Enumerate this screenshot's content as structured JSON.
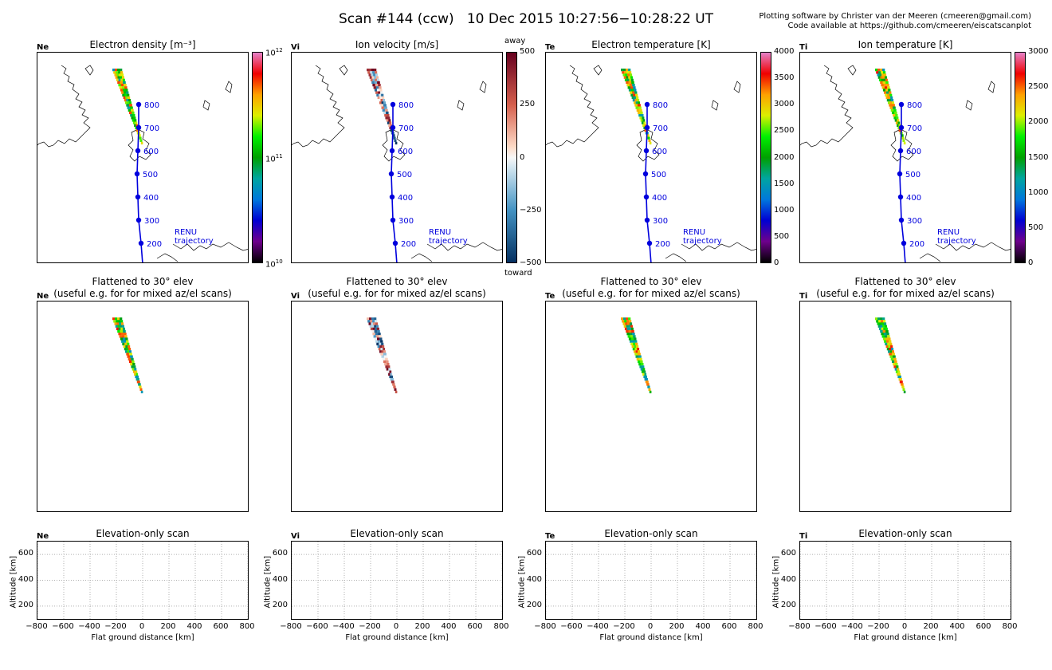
{
  "header": {
    "title": "Scan #144 (ccw)   10 Dec 2015 10:27:56−10:28:22 UT",
    "credit_line1": "Plotting software by Christer van der Meeren (cmeeren@gmail.com)",
    "credit_line2": "Code available at https://github.com/cmeeren/eiscatscanplot"
  },
  "trajectory": {
    "label_line1": "RENU",
    "label_line2": "trajectory",
    "altitudes": [
      "800",
      "700",
      "600",
      "500",
      "400",
      "300",
      "200"
    ],
    "color": "#0000dd"
  },
  "panels": [
    {
      "tag": "Ne",
      "map_title": "Electron density [m⁻³]",
      "colormap": "nipy_spectral",
      "colorbar_ticks": [
        {
          "base": "10",
          "exp": "12"
        },
        {
          "base": "10",
          "exp": "11"
        },
        {
          "base": "10",
          "exp": "10"
        }
      ],
      "colorbar_extra_top": "",
      "colorbar_extra_bottom": ""
    },
    {
      "tag": "Vi",
      "map_title": "Ion velocity [m/s]",
      "colormap": "RdBu_r",
      "colorbar_ticks": [
        {
          "base": "500",
          "exp": ""
        },
        {
          "base": "250",
          "exp": ""
        },
        {
          "base": "0",
          "exp": ""
        },
        {
          "base": "−250",
          "exp": ""
        },
        {
          "base": "−500",
          "exp": ""
        }
      ],
      "colorbar_extra_top": "away",
      "colorbar_extra_bottom": "toward"
    },
    {
      "tag": "Te",
      "map_title": "Electron temperature [K]",
      "colormap": "nipy_spectral",
      "colorbar_ticks": [
        {
          "base": "4000",
          "exp": ""
        },
        {
          "base": "3500",
          "exp": ""
        },
        {
          "base": "3000",
          "exp": ""
        },
        {
          "base": "2500",
          "exp": ""
        },
        {
          "base": "2000",
          "exp": ""
        },
        {
          "base": "1500",
          "exp": ""
        },
        {
          "base": "1000",
          "exp": ""
        },
        {
          "base": "500",
          "exp": ""
        },
        {
          "base": "0",
          "exp": ""
        }
      ],
      "colorbar_extra_top": "",
      "colorbar_extra_bottom": ""
    },
    {
      "tag": "Ti",
      "map_title": "Ion temperature [K]",
      "colormap": "nipy_spectral",
      "colorbar_ticks": [
        {
          "base": "3000",
          "exp": ""
        },
        {
          "base": "2500",
          "exp": ""
        },
        {
          "base": "2000",
          "exp": ""
        },
        {
          "base": "1500",
          "exp": ""
        },
        {
          "base": "1000",
          "exp": ""
        },
        {
          "base": "500",
          "exp": ""
        },
        {
          "base": "0",
          "exp": ""
        }
      ],
      "colorbar_extra_top": "",
      "colorbar_extra_bottom": ""
    }
  ],
  "flattened": {
    "title_line1": "Flattened to 30° elev",
    "title_line2": "(useful e.g. for for mixed az/el scans)"
  },
  "elevation": {
    "title": "Elevation-only scan",
    "xlabel": "Flat ground distance [km]",
    "ylabel": "Altitude [km]",
    "xticks": [
      "−800",
      "−600",
      "−400",
      "−200",
      "0",
      "200",
      "400",
      "600",
      "800"
    ],
    "yticks": [
      "600",
      "400",
      "200"
    ]
  },
  "chart_data": [
    {
      "type": "heatmap",
      "title": "Electron density [m⁻³]",
      "panel": "Ne",
      "colorbar_range": [
        10000000000.0,
        1000000000000.0
      ],
      "colorbar_scale": "log",
      "trajectory_altitudes_km": [
        800,
        700,
        600,
        500,
        400,
        300,
        200
      ]
    },
    {
      "type": "heatmap",
      "title": "Ion velocity [m/s]",
      "panel": "Vi",
      "colorbar_range": [
        -500,
        500
      ],
      "colorbar_scale": "linear",
      "trajectory_altitudes_km": [
        800,
        700,
        600,
        500,
        400,
        300,
        200
      ]
    },
    {
      "type": "heatmap",
      "title": "Electron temperature [K]",
      "panel": "Te",
      "colorbar_range": [
        0,
        4000
      ],
      "colorbar_scale": "linear",
      "trajectory_altitudes_km": [
        800,
        700,
        600,
        500,
        400,
        300,
        200
      ]
    },
    {
      "type": "heatmap",
      "title": "Ion temperature [K]",
      "panel": "Ti",
      "colorbar_range": [
        0,
        3000
      ],
      "colorbar_scale": "linear",
      "trajectory_altitudes_km": [
        800,
        700,
        600,
        500,
        400,
        300,
        200
      ]
    },
    {
      "type": "scatter",
      "title": "Elevation-only scan",
      "xlabel": "Flat ground distance [km]",
      "ylabel": "Altitude [km]",
      "xlim": [
        -800,
        800
      ],
      "ylim": [
        100,
        700
      ],
      "grid": true,
      "series": []
    }
  ]
}
